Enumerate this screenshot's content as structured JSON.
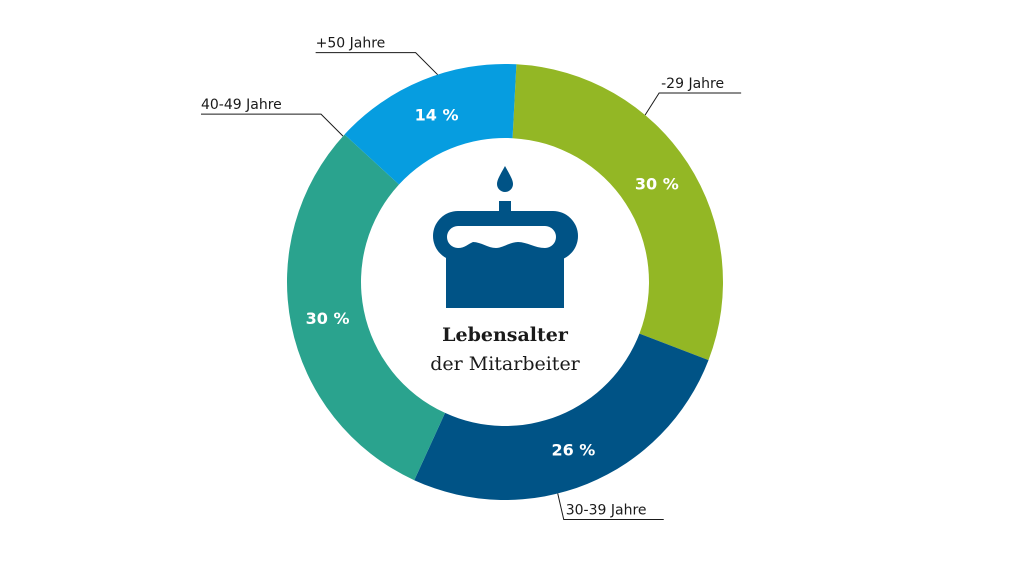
{
  "chart_data": {
    "type": "pie",
    "title": "Lebensalter",
    "subtitle": "der Mitarbeiter",
    "center_icon": "birthday-cake-icon",
    "slices": [
      {
        "label": "-29 Jahre",
        "value": 30,
        "value_label": "30 %",
        "color": "#93b725"
      },
      {
        "label": "30-39 Jahre",
        "value": 26,
        "value_label": "26 %",
        "color": "#005386"
      },
      {
        "label": "40-49 Jahre",
        "value": 30,
        "value_label": "30 %",
        "color": "#2aa38e"
      },
      {
        "label": "+50 Jahre",
        "value": 14,
        "value_label": "14 %",
        "color": "#069de0"
      }
    ],
    "icon_color": "#005386"
  }
}
